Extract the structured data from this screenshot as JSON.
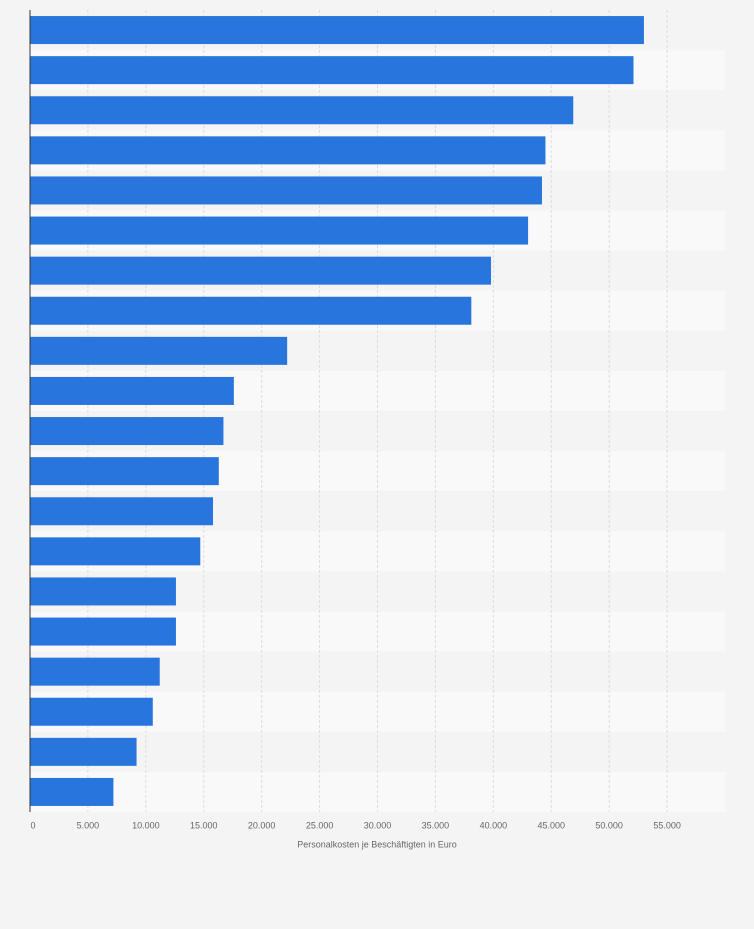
{
  "chart_data": {
    "type": "bar",
    "orientation": "horizontal",
    "x_label": "Personalkosten je Beschäftigten in Euro",
    "categories": [
      null,
      null,
      null,
      null,
      null,
      null,
      null,
      null,
      null,
      null,
      null,
      null,
      null,
      null,
      null,
      null,
      null,
      null,
      null,
      null
    ],
    "values": [
      53000,
      52100,
      46900,
      44500,
      44200,
      43000,
      39800,
      38100,
      22200,
      17600,
      16700,
      16300,
      15800,
      14700,
      12600,
      12600,
      11200,
      10600,
      9200,
      7200
    ],
    "color": "#2876dd",
    "xlim": [
      0,
      60000
    ],
    "xticks": [
      0,
      {
        "value": 5000,
        "label": "5.000"
      },
      {
        "value": 10000,
        "label": "10.000"
      },
      {
        "value": 15000,
        "label": "15.000"
      },
      {
        "value": 20000,
        "label": "20.000"
      },
      {
        "value": 25000,
        "label": "25.000"
      },
      {
        "value": 30000,
        "label": "30.000"
      },
      {
        "value": 35000,
        "label": "35.000"
      },
      {
        "value": 40000,
        "label": "40.000"
      },
      {
        "value": 45000,
        "label": "45.000"
      },
      {
        "value": 50000,
        "label": "50.000"
      },
      {
        "value": 55000,
        "label": "55.000"
      }
    ],
    "grid": true
  }
}
